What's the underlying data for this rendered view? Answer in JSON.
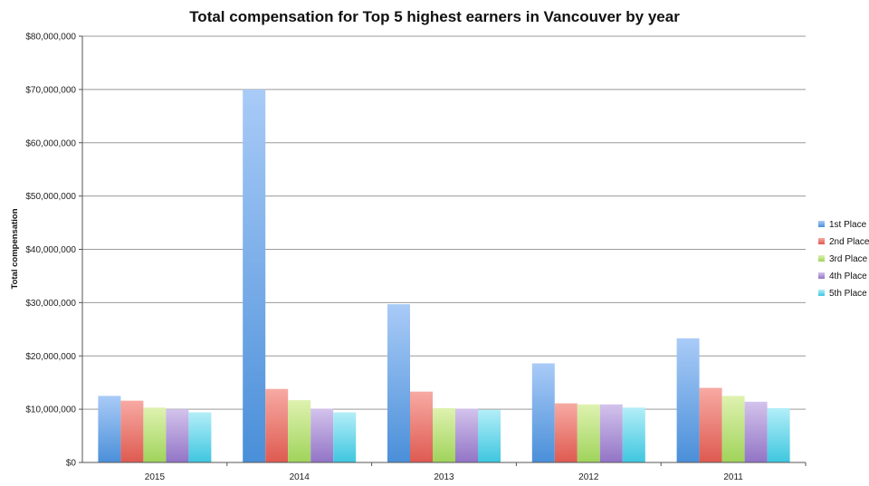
{
  "chart_data": {
    "type": "bar",
    "title": "Total compensation for Top 5 highest earners in Vancouver by year",
    "xlabel": "",
    "ylabel": "Total compensation",
    "categories": [
      "2015",
      "2014",
      "2013",
      "2012",
      "2011"
    ],
    "ylim": [
      0,
      80000000
    ],
    "yticks": [
      0,
      10000000,
      20000000,
      30000000,
      40000000,
      50000000,
      60000000,
      70000000,
      80000000
    ],
    "ytick_labels": [
      "$0",
      "$10,000,000",
      "$20,000,000",
      "$30,000,000",
      "$40,000,000",
      "$50,000,000",
      "$60,000,000",
      "$70,000,000",
      "$80,000,000"
    ],
    "grid": true,
    "legend_position": "right",
    "series": [
      {
        "name": "1st Place",
        "color_top": "#a9cbf7",
        "color_bottom": "#4a8fd9",
        "values": [
          12500000,
          70000000,
          29700000,
          18600000,
          23300000
        ]
      },
      {
        "name": "2nd Place",
        "color_top": "#f7aaa3",
        "color_bottom": "#de5a50",
        "values": [
          11600000,
          13800000,
          13300000,
          11100000,
          14000000
        ]
      },
      {
        "name": "3rd Place",
        "color_top": "#dff2b0",
        "color_bottom": "#9fd35a",
        "values": [
          10300000,
          11700000,
          10200000,
          10900000,
          12500000
        ]
      },
      {
        "name": "4th Place",
        "color_top": "#d3c3ec",
        "color_bottom": "#9274c6",
        "values": [
          10000000,
          10100000,
          10100000,
          10900000,
          11400000
        ]
      },
      {
        "name": "5th Place",
        "color_top": "#b3eef8",
        "color_bottom": "#3ec6df",
        "values": [
          9400000,
          9400000,
          9900000,
          10300000,
          10200000
        ]
      }
    ]
  }
}
